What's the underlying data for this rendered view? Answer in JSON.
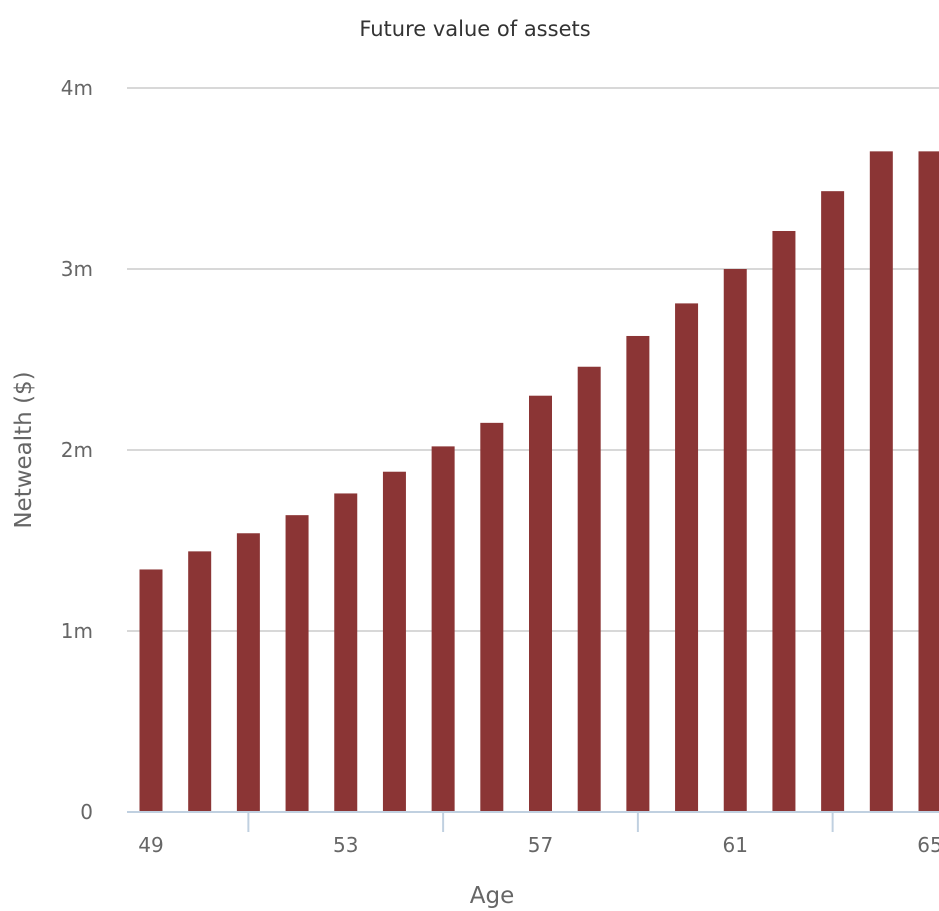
{
  "chart_data": {
    "type": "bar",
    "title": "Future value of assets",
    "xlabel": "Age",
    "ylabel": "Netwealth ($)",
    "categories": [
      49,
      50,
      51,
      52,
      53,
      54,
      55,
      56,
      57,
      58,
      59,
      60,
      61,
      62,
      63,
      64,
      65
    ],
    "x_tick_labels": [
      "49",
      "53",
      "57",
      "61",
      "65"
    ],
    "y_ticks": [
      0,
      1000000,
      2000000,
      3000000,
      4000000
    ],
    "y_tick_labels": [
      "0",
      "1m",
      "2m",
      "3m",
      "4m"
    ],
    "ylim": [
      0,
      4000000
    ],
    "grid": true,
    "bar_color": "#8b3535",
    "series": [
      {
        "values": [
          1340000,
          1440000,
          1540000,
          1640000,
          1760000,
          1880000,
          2020000,
          2150000,
          2300000,
          2460000,
          2630000,
          2810000,
          3000000,
          3210000,
          3430000,
          3650000,
          3650000
        ]
      }
    ]
  }
}
